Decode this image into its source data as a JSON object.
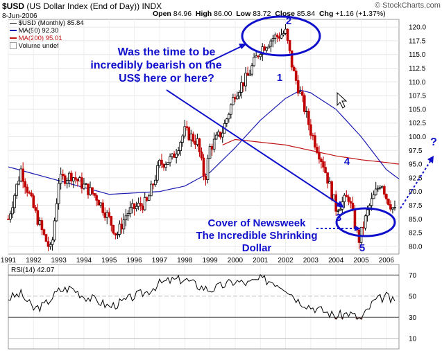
{
  "header": {
    "symbol": "$USD",
    "description": "(US Dollar Index (End of Day))",
    "exchange": "INDX",
    "date": "8-Jun-2006",
    "open_label": "Open",
    "open": "84.96",
    "high_label": "High",
    "high": "86.00",
    "low_label": "Low",
    "low": "83.72",
    "close_label": "Close",
    "close": "85.84",
    "chg_label": "Chg",
    "chg": "+1.16 (+1.37%)",
    "brand": "© StockCharts.com"
  },
  "legend": [
    {
      "text": "$USD (Monthly) 85.84",
      "color": "#000000"
    },
    {
      "text": "MA(50) 92.30",
      "color": "#1a1ab0"
    },
    {
      "text": "MA(200) 95.01",
      "color": "#c01010"
    },
    {
      "text": "Volume undef",
      "color": "#808080"
    }
  ],
  "rsi_label": "RSI(14) 42.07",
  "annotations": {
    "question": [
      "Was the time to be",
      "incredibly bearish on the",
      "US$ here or here?"
    ],
    "newsweek": [
      "Cover of Newsweek",
      "The Incredible Shrinking",
      "Dollar"
    ],
    "wave_labels": [
      "1",
      "2",
      "3",
      "4",
      "5"
    ],
    "question_mark": "?"
  },
  "colors": {
    "annotation_blue": "#1010cc",
    "up_candle": "#000000",
    "down_candle": "#c00000",
    "ma50": "#1a1ab0",
    "ma200": "#c01010"
  },
  "chart_data": [
    {
      "type": "candlestick",
      "x_ticks": [
        "1991",
        "1992",
        "1993",
        "1994",
        "1995",
        "1996",
        "1997",
        "1998",
        "1999",
        "2000",
        "2001",
        "2002",
        "2003",
        "2004",
        "2005",
        "2006"
      ],
      "y_ticks": [
        80.0,
        82.5,
        85.0,
        87.5,
        90.0,
        92.5,
        95.0,
        97.5,
        100.0,
        102.5,
        105.0,
        107.5,
        110.0,
        112.5,
        115.0,
        117.5,
        120.0
      ],
      "xlim": [
        1991.0,
        2006.5
      ],
      "ylim": [
        78.6,
        121.4
      ],
      "series": [
        {
          "name": "$USD (Monthly)",
          "x": [
            1991,
            1991.5,
            1992,
            1992.4,
            1992.7,
            1993,
            1993.5,
            1994,
            1994.5,
            1995,
            1995.3,
            1995.7,
            1996,
            1996.5,
            1997,
            1997.5,
            1998,
            1998.5,
            1998.8,
            1999,
            1999.5,
            2000,
            2000.5,
            2001,
            2001.5,
            2002,
            2002.3,
            2002.7,
            2003,
            2003.5,
            2004,
            2004.5,
            2004.9,
            2005.3,
            2005.8,
            2006,
            2006.4
          ],
          "y": [
            85,
            94,
            87,
            82,
            79,
            92,
            93,
            91,
            89,
            85,
            82,
            86,
            87,
            88,
            95,
            96,
            101,
            99,
            92,
            98,
            101,
            108,
            111,
            116,
            118,
            119,
            112,
            106,
            101,
            95,
            87,
            89,
            81,
            87,
            92,
            89,
            85.84
          ]
        },
        {
          "name": "MA(50)",
          "x": [
            1991,
            1993,
            1995,
            1997,
            1998,
            1999,
            2000,
            2001,
            2002,
            2002.6,
            2003,
            2004,
            2005,
            2005.5,
            2006,
            2006.5
          ],
          "y": [
            94.5,
            92,
            89.5,
            90,
            91,
            93.5,
            98,
            103,
            107,
            108.5,
            108,
            105,
            100,
            97,
            94,
            92.3
          ]
        },
        {
          "name": "MA(200)",
          "x": [
            1999.5,
            2000,
            2001,
            2002,
            2003,
            2004,
            2005,
            2006,
            2006.5
          ],
          "y": [
            98.5,
            99.5,
            99,
            98.5,
            97.5,
            96.5,
            95.8,
            95.3,
            95.01
          ]
        }
      ]
    },
    {
      "type": "line",
      "name": "RSI(14)",
      "x_ticks": [
        "1991",
        "1992",
        "1993",
        "1994",
        "1995",
        "1996",
        "1997",
        "1998",
        "1999",
        "2000",
        "2001",
        "2002",
        "2003",
        "2004",
        "2005",
        "2006"
      ],
      "y_ticks": [
        10,
        30,
        50,
        70
      ],
      "ylim": [
        0,
        80
      ],
      "x": [
        1991,
        1991.5,
        1992,
        1992.4,
        1993,
        1993.5,
        1994,
        1994.5,
        1995,
        1995.5,
        1996,
        1996.5,
        1997,
        1997.5,
        1998,
        1998.5,
        1999,
        1999.5,
        2000,
        2000.5,
        2001,
        2001.5,
        2002,
        2002.5,
        2003,
        2003.5,
        2004,
        2004.5,
        2005,
        2005.5,
        2006,
        2006.4
      ],
      "y": [
        48,
        52,
        38,
        41,
        55,
        58,
        50,
        46,
        40,
        44,
        50,
        54,
        62,
        65,
        66,
        60,
        56,
        60,
        64,
        62,
        66,
        64,
        58,
        46,
        40,
        36,
        31,
        34,
        28,
        45,
        50,
        42.07
      ]
    }
  ]
}
